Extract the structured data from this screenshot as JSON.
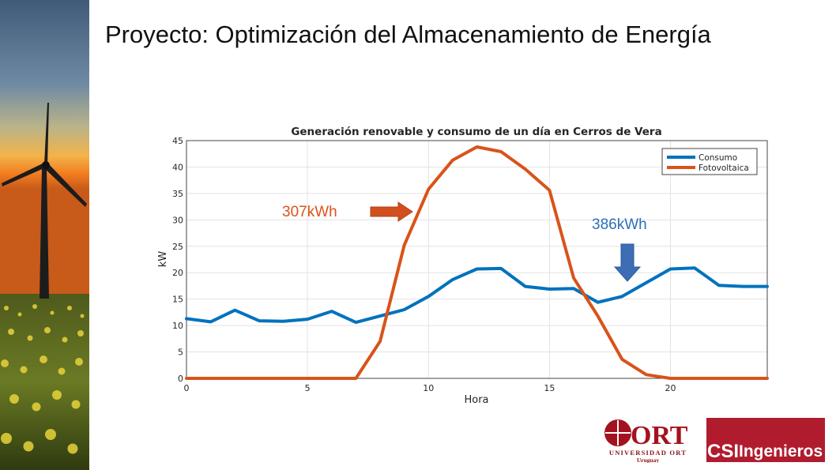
{
  "slide": {
    "title": "Proyecto: Optimización del Almacenamiento de Energía"
  },
  "annotations": {
    "photovoltaic_energy": "307kWh",
    "consumption_energy": "386kWh"
  },
  "logos": {
    "ort_mark": "ORT",
    "ort_name": "UNIVERSIDAD ORT",
    "ort_country": "Uruguay",
    "csi_mark": "CSI",
    "csi_text": "Ingenieros"
  },
  "colors": {
    "consumo": "#0072bd",
    "fotovoltaica": "#d95319",
    "ort_red": "#a4121f",
    "csi_red": "#b01c2e"
  },
  "chart_data": {
    "type": "line",
    "title": "Generación renovable y consumo de un día en Cerros de Vera",
    "xlabel": "Hora",
    "ylabel": "kW",
    "xlim": [
      0,
      24
    ],
    "ylim": [
      0,
      45
    ],
    "xticks": [
      0,
      5,
      10,
      15,
      20
    ],
    "yticks": [
      0,
      5,
      10,
      15,
      20,
      25,
      30,
      35,
      40,
      45
    ],
    "grid": true,
    "legend_position": "top-right",
    "x": [
      0,
      1,
      2,
      3,
      4,
      5,
      6,
      7,
      8,
      9,
      10,
      11,
      12,
      13,
      14,
      15,
      16,
      17,
      18,
      19,
      20,
      21,
      22,
      23,
      24
    ],
    "series": [
      {
        "name": "Consumo",
        "color": "#0072bd",
        "values": [
          11.3,
          10.7,
          12.9,
          10.9,
          10.8,
          11.2,
          12.7,
          10.6,
          11.8,
          13.0,
          15.5,
          18.7,
          20.7,
          20.8,
          17.4,
          16.9,
          17.0,
          14.4,
          15.5,
          18.1,
          20.7,
          20.9,
          17.6,
          17.4,
          17.4
        ]
      },
      {
        "name": "Fotovoltaica",
        "color": "#d95319",
        "values": [
          0,
          0,
          0,
          0,
          0,
          0,
          0,
          0,
          7.0,
          25.2,
          35.8,
          41.3,
          43.8,
          42.9,
          39.6,
          35.6,
          19.0,
          11.8,
          3.6,
          0.7,
          0,
          0,
          0,
          0,
          0
        ]
      }
    ]
  }
}
